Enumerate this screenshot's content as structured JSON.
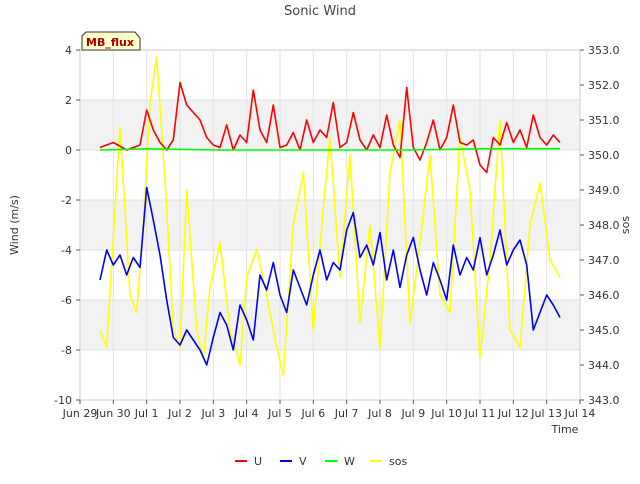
{
  "chart_data": {
    "type": "line",
    "title": "Sonic Wind",
    "xlabel": "Time",
    "ylabel_left": "Wind (m/s)",
    "ylabel_right": "sos",
    "site_label": "MB_flux",
    "x_ticks": [
      "Jun 29",
      "Jun 30",
      "Jul 1",
      "Jul 2",
      "Jul 3",
      "Jul 4",
      "Jul 5",
      "Jul 6",
      "Jul 7",
      "Jul 8",
      "Jul 9",
      "Jul 10",
      "Jul 11",
      "Jul 12",
      "Jul 13",
      "Jul 14"
    ],
    "x_range_days": [
      0,
      15
    ],
    "ylim_left": [
      -10,
      4
    ],
    "y_ticks_left": [
      "4",
      "2",
      "0",
      "-2",
      "-4",
      "-6",
      "-8",
      "-10"
    ],
    "ylim_right": [
      343.0,
      353.0
    ],
    "y_ticks_right": [
      "353.0",
      "352.0",
      "351.0",
      "350.0",
      "349.0",
      "348.0",
      "347.0",
      "346.0",
      "345.0",
      "344.0",
      "343.0"
    ],
    "grid": true,
    "legend_position": "bottom-center",
    "series": [
      {
        "name": "U",
        "axis": "left",
        "color": "#ff0000",
        "x": [
          0.6,
          1.0,
          1.4,
          1.8,
          2.0,
          2.2,
          2.4,
          2.6,
          2.8,
          3.0,
          3.2,
          3.4,
          3.6,
          3.8,
          4.0,
          4.2,
          4.4,
          4.6,
          4.8,
          5.0,
          5.2,
          5.4,
          5.6,
          5.8,
          6.0,
          6.2,
          6.4,
          6.6,
          6.8,
          7.0,
          7.2,
          7.4,
          7.6,
          7.8,
          8.0,
          8.2,
          8.4,
          8.6,
          8.8,
          9.0,
          9.2,
          9.4,
          9.6,
          9.8,
          10.0,
          10.2,
          10.4,
          10.6,
          10.8,
          11.0,
          11.2,
          11.4,
          11.6,
          11.8,
          12.0,
          12.2,
          12.4,
          12.6,
          12.8,
          13.0,
          13.2,
          13.4,
          13.6,
          13.8,
          14.0,
          14.2,
          14.4
        ],
        "values": [
          0.1,
          0.3,
          0.0,
          0.2,
          1.6,
          0.8,
          0.3,
          0.0,
          0.4,
          2.7,
          1.8,
          1.5,
          1.2,
          0.5,
          0.2,
          0.1,
          1.0,
          0.0,
          0.6,
          0.3,
          2.4,
          0.8,
          0.3,
          1.8,
          0.1,
          0.2,
          0.7,
          0.0,
          1.2,
          0.3,
          0.8,
          0.5,
          1.9,
          0.1,
          0.3,
          1.5,
          0.4,
          0.0,
          0.6,
          0.1,
          1.4,
          0.2,
          -0.3,
          2.5,
          0.1,
          -0.4,
          0.3,
          1.2,
          0.0,
          0.5,
          1.8,
          0.3,
          0.2,
          0.4,
          -0.6,
          -0.9,
          0.5,
          0.2,
          1.1,
          0.3,
          0.8,
          0.1,
          1.4,
          0.5,
          0.2,
          0.6,
          0.3
        ]
      },
      {
        "name": "V",
        "axis": "left",
        "color": "#0000ff",
        "x": [
          0.6,
          0.8,
          1.0,
          1.2,
          1.4,
          1.6,
          1.8,
          2.0,
          2.2,
          2.4,
          2.6,
          2.8,
          3.0,
          3.2,
          3.4,
          3.6,
          3.8,
          4.0,
          4.2,
          4.4,
          4.6,
          4.8,
          5.0,
          5.2,
          5.4,
          5.6,
          5.8,
          6.0,
          6.2,
          6.4,
          6.6,
          6.8,
          7.0,
          7.2,
          7.4,
          7.6,
          7.8,
          8.0,
          8.2,
          8.4,
          8.6,
          8.8,
          9.0,
          9.2,
          9.4,
          9.6,
          9.8,
          10.0,
          10.2,
          10.4,
          10.6,
          10.8,
          11.0,
          11.2,
          11.4,
          11.6,
          11.8,
          12.0,
          12.2,
          12.4,
          12.6,
          12.8,
          13.0,
          13.2,
          13.4,
          13.6,
          13.8,
          14.0,
          14.2,
          14.4
        ],
        "values": [
          -5.2,
          -4.0,
          -4.6,
          -4.2,
          -5.0,
          -4.3,
          -4.7,
          -1.5,
          -2.8,
          -4.2,
          -6.0,
          -7.5,
          -7.8,
          -7.2,
          -7.6,
          -8.0,
          -8.6,
          -7.5,
          -6.5,
          -7.0,
          -8.0,
          -6.2,
          -6.8,
          -7.6,
          -5.0,
          -5.6,
          -4.5,
          -5.8,
          -6.5,
          -4.8,
          -5.5,
          -6.2,
          -5.0,
          -4.0,
          -5.2,
          -4.5,
          -4.8,
          -3.2,
          -2.5,
          -4.3,
          -3.8,
          -4.6,
          -3.3,
          -5.2,
          -4.0,
          -5.5,
          -4.2,
          -3.5,
          -4.8,
          -5.8,
          -4.5,
          -5.2,
          -6.0,
          -3.8,
          -5.0,
          -4.3,
          -4.8,
          -3.5,
          -5.0,
          -4.2,
          -3.2,
          -4.6,
          -4.0,
          -3.6,
          -4.6,
          -7.2,
          -6.5,
          -5.8,
          -6.2,
          -6.7
        ]
      },
      {
        "name": "W",
        "axis": "left",
        "color": "#00ff00",
        "x": [
          0.6,
          2.0,
          4.0,
          6.0,
          8.0,
          10.0,
          12.0,
          14.4
        ],
        "values": [
          0.0,
          0.05,
          0.0,
          0.0,
          0.0,
          0.0,
          0.05,
          0.05
        ]
      },
      {
        "name": "sos",
        "axis": "right",
        "color": "#ffff00",
        "x": [
          0.6,
          0.8,
          1.2,
          1.5,
          1.7,
          1.9,
          2.1,
          2.3,
          2.6,
          2.8,
          3.0,
          3.2,
          3.5,
          3.7,
          3.9,
          4.2,
          4.5,
          4.8,
          5.0,
          5.3,
          5.6,
          5.9,
          6.1,
          6.4,
          6.7,
          7.0,
          7.3,
          7.5,
          7.8,
          8.1,
          8.4,
          8.7,
          9.0,
          9.3,
          9.6,
          9.9,
          10.2,
          10.5,
          10.8,
          11.1,
          11.4,
          11.7,
          12.0,
          12.3,
          12.6,
          12.9,
          13.2,
          13.5,
          13.8,
          14.1,
          14.4
        ],
        "values": [
          345.0,
          344.5,
          350.8,
          346.0,
          345.5,
          348.0,
          351.5,
          352.8,
          348.5,
          345.0,
          344.5,
          349.0,
          345.0,
          344.2,
          346.2,
          347.5,
          345.0,
          344.0,
          346.5,
          347.3,
          346.0,
          344.5,
          343.7,
          348.0,
          349.5,
          345.0,
          348.5,
          350.5,
          346.5,
          350.0,
          345.2,
          348.0,
          344.5,
          349.5,
          351.0,
          345.2,
          347.5,
          350.0,
          346.0,
          345.5,
          350.5,
          349.0,
          344.2,
          347.0,
          351.0,
          345.0,
          344.5,
          348.0,
          349.2,
          347.0,
          346.5
        ]
      }
    ]
  }
}
